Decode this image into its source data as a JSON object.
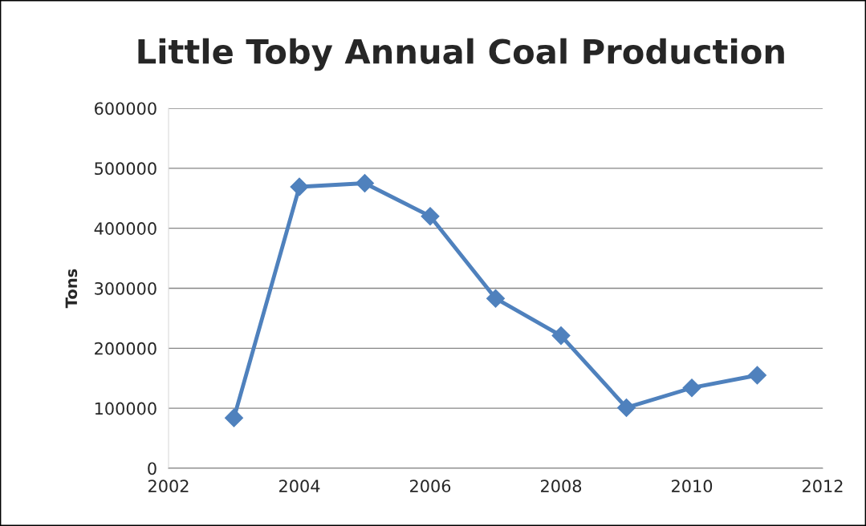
{
  "chart_data": {
    "type": "line",
    "title": "Little Toby Annual Coal Production",
    "ylabel": "Tons",
    "x": [
      2003,
      2004,
      2005,
      2006,
      2007,
      2008,
      2009,
      2010,
      2011
    ],
    "series": [
      {
        "color": "#4f81bd",
        "values": [
          84000,
          469000,
          475000,
          420000,
          283000,
          221000,
          101000,
          134000,
          155000
        ]
      }
    ],
    "xlim": [
      2002,
      2012
    ],
    "xticks": [
      2002,
      2004,
      2006,
      2008,
      2010,
      2012
    ],
    "ylim": [
      0,
      600000
    ],
    "yticks": [
      0,
      100000,
      200000,
      300000,
      400000,
      500000,
      600000
    ],
    "grid": "y",
    "marker": "diamond",
    "line_style": "solid"
  }
}
